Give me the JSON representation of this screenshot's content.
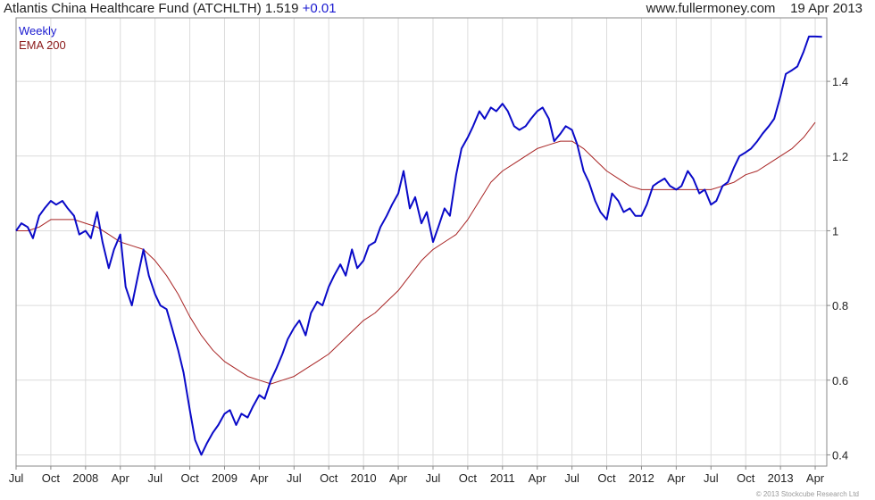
{
  "header": {
    "title": "Atlantis China Healthcare Fund (ATCHLTH)",
    "last_price": "1.519",
    "change": "+0.01",
    "source": "www.fullermoney.com",
    "date": "19 Apr 2013"
  },
  "legend": {
    "weekly": "Weekly",
    "ema": "EMA 200"
  },
  "copyright": "© 2013 Stockcube Research Ltd",
  "colors": {
    "weekly": "#0a0ac8",
    "ema": "#a82424",
    "grid": "#dcdcdc",
    "frame": "#8a8a8a"
  },
  "chart_data": {
    "type": "line",
    "x_tick_labels": [
      "Jul",
      "Oct",
      "2008",
      "Apr",
      "Jul",
      "Oct",
      "2009",
      "Apr",
      "Jul",
      "Oct",
      "2010",
      "Apr",
      "Jul",
      "Oct",
      "2011",
      "Apr",
      "Jul",
      "Oct",
      "2012",
      "Apr",
      "Jul",
      "Oct",
      "2013",
      "Apr"
    ],
    "x_ticks": [
      "2007-07",
      "2007-10",
      "2008-01",
      "2008-04",
      "2008-07",
      "2008-10",
      "2009-01",
      "2009-04",
      "2009-07",
      "2009-10",
      "2010-01",
      "2010-04",
      "2010-07",
      "2010-10",
      "2011-01",
      "2011-04",
      "2011-07",
      "2011-10",
      "2012-01",
      "2012-04",
      "2012-07",
      "2012-10",
      "2013-01",
      "2013-04"
    ],
    "xlim": [
      "2007-07",
      "2013-05"
    ],
    "y_ticks": [
      0.4,
      0.6,
      0.8,
      1,
      1.2,
      1.4
    ],
    "y_tick_labels": [
      "0.4",
      "0.6",
      "0.8",
      "1",
      "1.2",
      "1.4"
    ],
    "ylim": [
      0.37,
      1.57
    ],
    "grid": true,
    "y_axis_side": "right",
    "legend_position": "top-left",
    "series": [
      {
        "name": "Weekly",
        "points": [
          [
            "2007-07",
            1.0
          ],
          [
            "2007-07-15",
            1.02
          ],
          [
            "2007-08",
            1.01
          ],
          [
            "2007-08-15",
            0.98
          ],
          [
            "2007-09",
            1.04
          ],
          [
            "2007-09-15",
            1.06
          ],
          [
            "2007-10",
            1.08
          ],
          [
            "2007-10-15",
            1.07
          ],
          [
            "2007-11",
            1.08
          ],
          [
            "2007-11-15",
            1.06
          ],
          [
            "2007-12",
            1.04
          ],
          [
            "2007-12-15",
            0.99
          ],
          [
            "2008-01",
            1.0
          ],
          [
            "2008-01-15",
            0.98
          ],
          [
            "2008-02",
            1.05
          ],
          [
            "2008-02-15",
            0.97
          ],
          [
            "2008-03",
            0.9
          ],
          [
            "2008-03-15",
            0.95
          ],
          [
            "2008-04",
            0.99
          ],
          [
            "2008-04-15",
            0.85
          ],
          [
            "2008-05",
            0.8
          ],
          [
            "2008-05-15",
            0.87
          ],
          [
            "2008-06",
            0.95
          ],
          [
            "2008-06-15",
            0.88
          ],
          [
            "2008-07",
            0.83
          ],
          [
            "2008-07-15",
            0.8
          ],
          [
            "2008-08",
            0.79
          ],
          [
            "2008-08-15",
            0.74
          ],
          [
            "2008-09",
            0.68
          ],
          [
            "2008-09-15",
            0.62
          ],
          [
            "2008-10",
            0.52
          ],
          [
            "2008-10-15",
            0.44
          ],
          [
            "2008-11",
            0.4
          ],
          [
            "2008-11-15",
            0.43
          ],
          [
            "2008-12",
            0.46
          ],
          [
            "2008-12-15",
            0.48
          ],
          [
            "2009-01",
            0.51
          ],
          [
            "2009-01-15",
            0.52
          ],
          [
            "2009-02",
            0.48
          ],
          [
            "2009-02-15",
            0.51
          ],
          [
            "2009-03",
            0.5
          ],
          [
            "2009-03-15",
            0.53
          ],
          [
            "2009-04",
            0.56
          ],
          [
            "2009-04-15",
            0.55
          ],
          [
            "2009-05",
            0.6
          ],
          [
            "2009-05-15",
            0.63
          ],
          [
            "2009-06",
            0.67
          ],
          [
            "2009-06-15",
            0.71
          ],
          [
            "2009-07",
            0.74
          ],
          [
            "2009-07-15",
            0.76
          ],
          [
            "2009-08",
            0.72
          ],
          [
            "2009-08-15",
            0.78
          ],
          [
            "2009-09",
            0.81
          ],
          [
            "2009-09-15",
            0.8
          ],
          [
            "2009-10",
            0.85
          ],
          [
            "2009-10-15",
            0.88
          ],
          [
            "2009-11",
            0.91
          ],
          [
            "2009-11-15",
            0.88
          ],
          [
            "2009-12",
            0.95
          ],
          [
            "2009-12-15",
            0.9
          ],
          [
            "2010-01",
            0.92
          ],
          [
            "2010-01-15",
            0.96
          ],
          [
            "2010-02",
            0.97
          ],
          [
            "2010-02-15",
            1.01
          ],
          [
            "2010-03",
            1.04
          ],
          [
            "2010-03-15",
            1.07
          ],
          [
            "2010-04",
            1.1
          ],
          [
            "2010-04-15",
            1.16
          ],
          [
            "2010-05",
            1.06
          ],
          [
            "2010-05-15",
            1.09
          ],
          [
            "2010-06",
            1.02
          ],
          [
            "2010-06-15",
            1.05
          ],
          [
            "2010-07",
            0.97
          ],
          [
            "2010-07-15",
            1.01
          ],
          [
            "2010-08",
            1.06
          ],
          [
            "2010-08-15",
            1.04
          ],
          [
            "2010-09",
            1.15
          ],
          [
            "2010-09-15",
            1.22
          ],
          [
            "2010-10",
            1.25
          ],
          [
            "2010-10-15",
            1.28
          ],
          [
            "2010-11",
            1.32
          ],
          [
            "2010-11-15",
            1.3
          ],
          [
            "2010-12",
            1.33
          ],
          [
            "2010-12-15",
            1.32
          ],
          [
            "2011-01",
            1.34
          ],
          [
            "2011-01-15",
            1.32
          ],
          [
            "2011-02",
            1.28
          ],
          [
            "2011-02-15",
            1.27
          ],
          [
            "2011-03",
            1.28
          ],
          [
            "2011-03-15",
            1.3
          ],
          [
            "2011-04",
            1.32
          ],
          [
            "2011-04-15",
            1.33
          ],
          [
            "2011-05",
            1.3
          ],
          [
            "2011-05-15",
            1.24
          ],
          [
            "2011-06",
            1.26
          ],
          [
            "2011-06-15",
            1.28
          ],
          [
            "2011-07",
            1.27
          ],
          [
            "2011-07-15",
            1.23
          ],
          [
            "2011-08",
            1.16
          ],
          [
            "2011-08-15",
            1.13
          ],
          [
            "2011-09",
            1.08
          ],
          [
            "2011-09-15",
            1.05
          ],
          [
            "2011-10",
            1.03
          ],
          [
            "2011-10-15",
            1.1
          ],
          [
            "2011-11",
            1.08
          ],
          [
            "2011-11-15",
            1.05
          ],
          [
            "2011-12",
            1.06
          ],
          [
            "2011-12-15",
            1.04
          ],
          [
            "2012-01",
            1.04
          ],
          [
            "2012-01-15",
            1.07
          ],
          [
            "2012-02",
            1.12
          ],
          [
            "2012-02-15",
            1.13
          ],
          [
            "2012-03",
            1.14
          ],
          [
            "2012-03-15",
            1.12
          ],
          [
            "2012-04",
            1.11
          ],
          [
            "2012-04-15",
            1.12
          ],
          [
            "2012-05",
            1.16
          ],
          [
            "2012-05-15",
            1.14
          ],
          [
            "2012-06",
            1.1
          ],
          [
            "2012-06-15",
            1.11
          ],
          [
            "2012-07",
            1.07
          ],
          [
            "2012-07-15",
            1.08
          ],
          [
            "2012-08",
            1.12
          ],
          [
            "2012-08-15",
            1.13
          ],
          [
            "2012-09",
            1.17
          ],
          [
            "2012-09-15",
            1.2
          ],
          [
            "2012-10",
            1.21
          ],
          [
            "2012-10-15",
            1.22
          ],
          [
            "2012-11",
            1.24
          ],
          [
            "2012-11-15",
            1.26
          ],
          [
            "2012-12",
            1.28
          ],
          [
            "2012-12-15",
            1.3
          ],
          [
            "2013-01",
            1.36
          ],
          [
            "2013-01-15",
            1.42
          ],
          [
            "2013-02",
            1.43
          ],
          [
            "2013-02-15",
            1.44
          ],
          [
            "2013-03",
            1.48
          ],
          [
            "2013-03-15",
            1.52
          ],
          [
            "2013-04",
            1.52
          ],
          [
            "2013-04-19",
            1.519
          ]
        ]
      },
      {
        "name": "EMA 200",
        "points": [
          [
            "2007-07",
            1.0
          ],
          [
            "2007-08",
            1.0
          ],
          [
            "2007-09",
            1.01
          ],
          [
            "2007-10",
            1.03
          ],
          [
            "2007-11",
            1.03
          ],
          [
            "2007-12",
            1.03
          ],
          [
            "2008-01",
            1.02
          ],
          [
            "2008-02",
            1.01
          ],
          [
            "2008-03",
            0.99
          ],
          [
            "2008-04",
            0.97
          ],
          [
            "2008-05",
            0.96
          ],
          [
            "2008-06",
            0.95
          ],
          [
            "2008-07",
            0.92
          ],
          [
            "2008-08",
            0.88
          ],
          [
            "2008-09",
            0.83
          ],
          [
            "2008-10",
            0.77
          ],
          [
            "2008-11",
            0.72
          ],
          [
            "2008-12",
            0.68
          ],
          [
            "2009-01",
            0.65
          ],
          [
            "2009-02",
            0.63
          ],
          [
            "2009-03",
            0.61
          ],
          [
            "2009-04",
            0.6
          ],
          [
            "2009-05",
            0.59
          ],
          [
            "2009-06",
            0.6
          ],
          [
            "2009-07",
            0.61
          ],
          [
            "2009-08",
            0.63
          ],
          [
            "2009-09",
            0.65
          ],
          [
            "2009-10",
            0.67
          ],
          [
            "2009-11",
            0.7
          ],
          [
            "2009-12",
            0.73
          ],
          [
            "2010-01",
            0.76
          ],
          [
            "2010-02",
            0.78
          ],
          [
            "2010-03",
            0.81
          ],
          [
            "2010-04",
            0.84
          ],
          [
            "2010-05",
            0.88
          ],
          [
            "2010-06",
            0.92
          ],
          [
            "2010-07",
            0.95
          ],
          [
            "2010-08",
            0.97
          ],
          [
            "2010-09",
            0.99
          ],
          [
            "2010-10",
            1.03
          ],
          [
            "2010-11",
            1.08
          ],
          [
            "2010-12",
            1.13
          ],
          [
            "2011-01",
            1.16
          ],
          [
            "2011-02",
            1.18
          ],
          [
            "2011-03",
            1.2
          ],
          [
            "2011-04",
            1.22
          ],
          [
            "2011-05",
            1.23
          ],
          [
            "2011-06",
            1.24
          ],
          [
            "2011-07",
            1.24
          ],
          [
            "2011-08",
            1.22
          ],
          [
            "2011-09",
            1.19
          ],
          [
            "2011-10",
            1.16
          ],
          [
            "2011-11",
            1.14
          ],
          [
            "2011-12",
            1.12
          ],
          [
            "2012-01",
            1.11
          ],
          [
            "2012-02",
            1.11
          ],
          [
            "2012-03",
            1.11
          ],
          [
            "2012-04",
            1.11
          ],
          [
            "2012-05",
            1.11
          ],
          [
            "2012-06",
            1.11
          ],
          [
            "2012-07",
            1.11
          ],
          [
            "2012-08",
            1.12
          ],
          [
            "2012-09",
            1.13
          ],
          [
            "2012-10",
            1.15
          ],
          [
            "2012-11",
            1.16
          ],
          [
            "2012-12",
            1.18
          ],
          [
            "2013-01",
            1.2
          ],
          [
            "2013-02",
            1.22
          ],
          [
            "2013-03",
            1.25
          ],
          [
            "2013-04",
            1.29
          ]
        ]
      }
    ]
  }
}
